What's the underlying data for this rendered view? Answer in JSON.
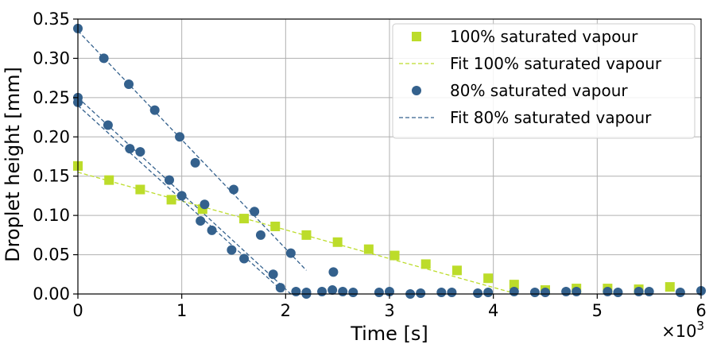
{
  "chart_data": {
    "type": "scatter",
    "xlabel": "Time [s]",
    "ylabel": "Droplet height [mm]",
    "x_multiplier_label": "×10",
    "x_multiplier_exponent": "3",
    "xlim": [
      0,
      6000
    ],
    "ylim": [
      0,
      0.35
    ],
    "xticks": [
      0,
      1000,
      2000,
      3000,
      4000,
      5000,
      6000
    ],
    "xtick_labels": [
      "0",
      "1",
      "2",
      "3",
      "4",
      "5",
      "6"
    ],
    "yticks": [
      0,
      0.05,
      0.1,
      0.15,
      0.2,
      0.25,
      0.3,
      0.35
    ],
    "ytick_labels": [
      "0.00",
      "0.05",
      "0.10",
      "0.15",
      "0.20",
      "0.25",
      "0.30",
      "0.35"
    ],
    "grid": true,
    "legend_position": "top-right",
    "colors": {
      "green": "#bcdc2a",
      "blue": "#34618d"
    },
    "series": [
      {
        "name": "100% saturated vapour",
        "kind": "scatter",
        "marker": "square",
        "color": "#bcdc2a",
        "x": [
          0,
          300,
          600,
          900,
          1200,
          1600,
          1900,
          2200,
          2500,
          2800,
          3050,
          3350,
          3650,
          3950,
          4200,
          4500,
          4800,
          5100,
          5400,
          5700
        ],
        "y": [
          0.163,
          0.145,
          0.133,
          0.12,
          0.108,
          0.096,
          0.086,
          0.075,
          0.066,
          0.057,
          0.049,
          0.038,
          0.03,
          0.02,
          0.012,
          0.005,
          0.007,
          0.007,
          0.006,
          0.009
        ]
      },
      {
        "name": "Fit 100% saturated vapour",
        "kind": "line",
        "dashed": true,
        "color": "#bcdc2a",
        "x": [
          0,
          4200
        ],
        "y": [
          0.155,
          0.001
        ]
      },
      {
        "name": "80% saturated vapour",
        "kind": "scatter",
        "marker": "circle",
        "color": "#34618d",
        "x": [
          0,
          0,
          0,
          250,
          290,
          490,
          500,
          600,
          740,
          880,
          980,
          1000,
          1130,
          1180,
          1220,
          1290,
          1480,
          1500,
          1600,
          1700,
          1760,
          1880,
          1950,
          2050,
          2100,
          2200,
          2200,
          2350,
          2450,
          2460,
          2550,
          2650,
          2900,
          3000,
          3200,
          3300,
          3500,
          3600,
          3850,
          3950,
          4200,
          4400,
          4500,
          4700,
          4800,
          5100,
          5200,
          5400,
          5500,
          5800,
          6000
        ],
        "y": [
          0.338,
          0.25,
          0.244,
          0.3,
          0.215,
          0.267,
          0.185,
          0.181,
          0.234,
          0.145,
          0.2,
          0.125,
          0.167,
          0.093,
          0.114,
          0.081,
          0.056,
          0.133,
          0.045,
          0.105,
          0.075,
          0.025,
          0.008,
          0.052,
          0.003,
          0.0,
          0.002,
          0.003,
          0.005,
          0.028,
          0.003,
          0.002,
          0.002,
          0.003,
          0.0,
          0.001,
          0.002,
          0.002,
          0.001,
          0.002,
          0.003,
          0.002,
          0.002,
          0.003,
          0.003,
          0.003,
          0.002,
          0.003,
          0.003,
          0.002,
          0.004
        ]
      },
      {
        "name": "Fit 80% saturated vapour",
        "kind": "lines",
        "dashed": true,
        "color": "#34618d",
        "segments": [
          {
            "x": [
              0,
              2200
            ],
            "y": [
              0.335,
              0.03
            ]
          },
          {
            "x": [
              0,
              2050
            ],
            "y": [
              0.25,
              0.0
            ]
          },
          {
            "x": [
              0,
              2000
            ],
            "y": [
              0.24,
              0.0
            ]
          }
        ]
      }
    ]
  }
}
